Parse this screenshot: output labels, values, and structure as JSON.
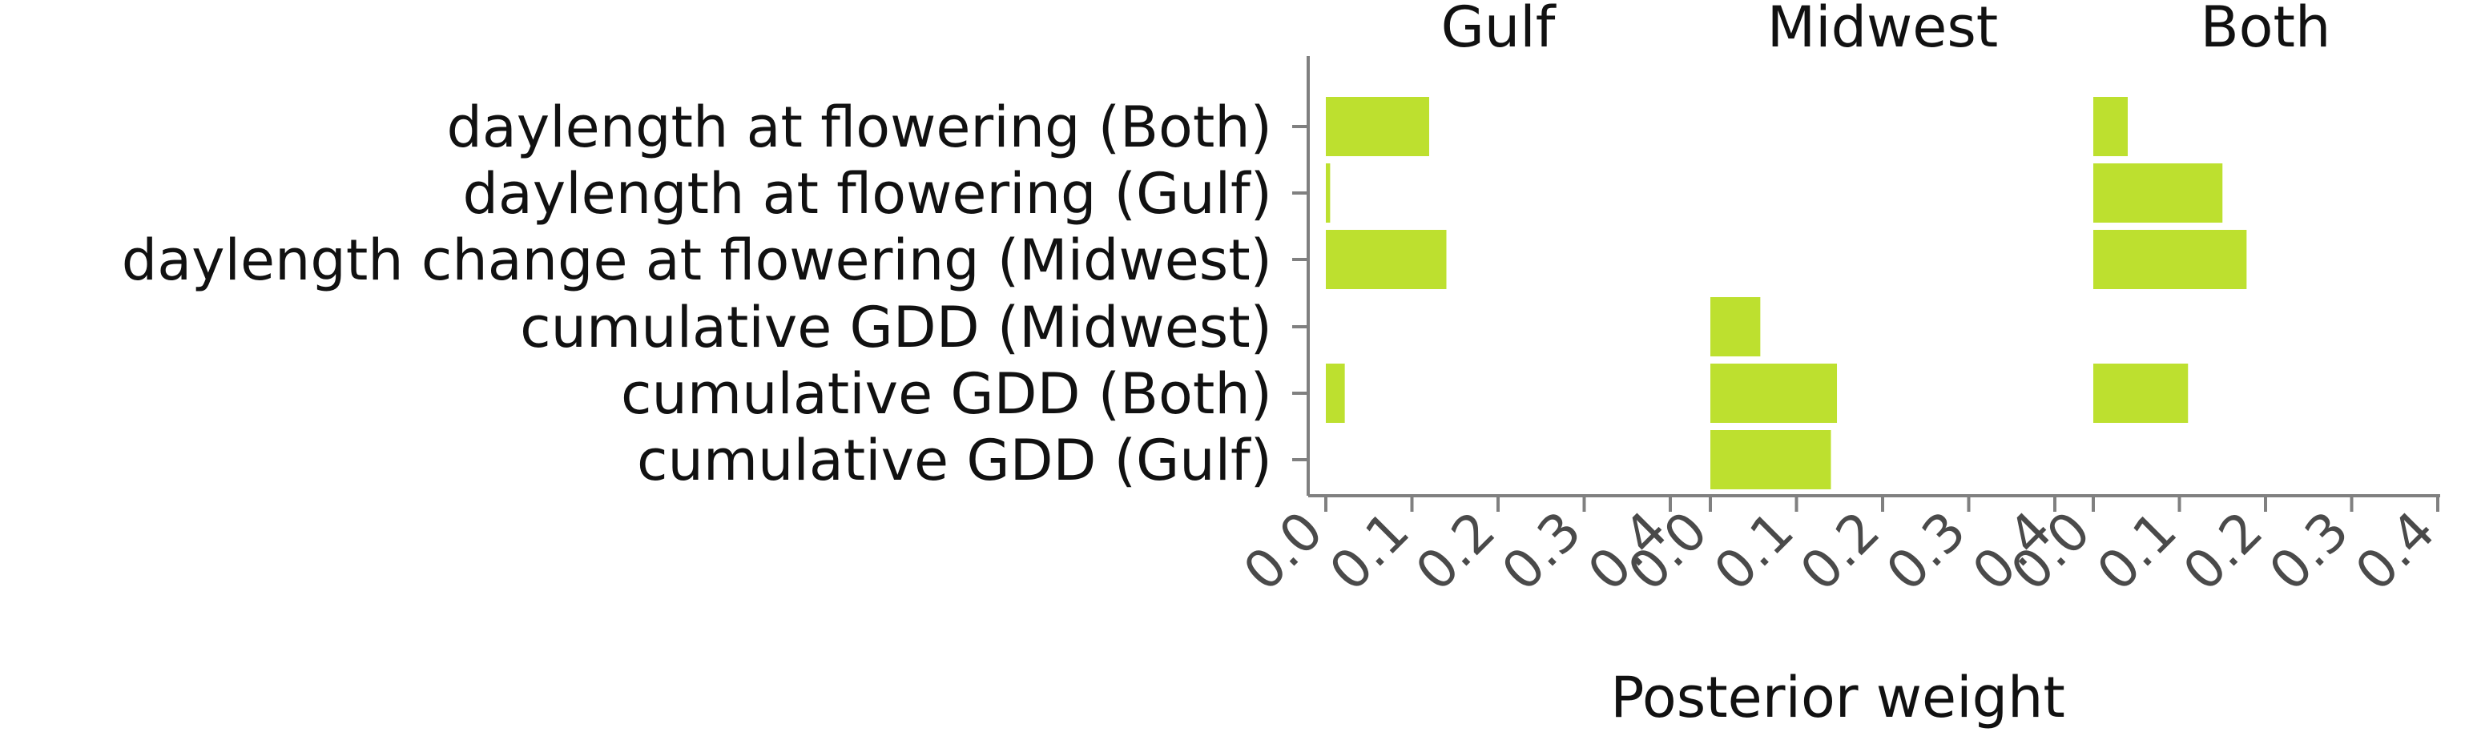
{
  "chart_data": {
    "type": "bar",
    "orientation": "horizontal",
    "xlabel": "Posterior weight",
    "xlim": [
      0,
      0.4
    ],
    "xticks": [
      "0.0",
      "0.1",
      "0.2",
      "0.3",
      "0.4"
    ],
    "categories": [
      "daylength at flowering (Both)",
      "daylength at flowering (Gulf)",
      "daylength change at flowering (Midwest)",
      "cumulative GDD (Midwest)",
      "cumulative GDD (Both)",
      "cumulative GDD (Gulf)"
    ],
    "bar_color": "#bde02f",
    "panels": [
      {
        "title": "Gulf",
        "values": [
          0.12,
          0.005,
          0.14,
          0,
          0.022,
          0
        ]
      },
      {
        "title": "Midwest",
        "values": [
          0,
          0,
          0,
          0.058,
          0.147,
          0.14
        ]
      },
      {
        "title": "Both",
        "values": [
          0.04,
          0.15,
          0.178,
          0,
          0.11,
          0
        ]
      }
    ]
  }
}
